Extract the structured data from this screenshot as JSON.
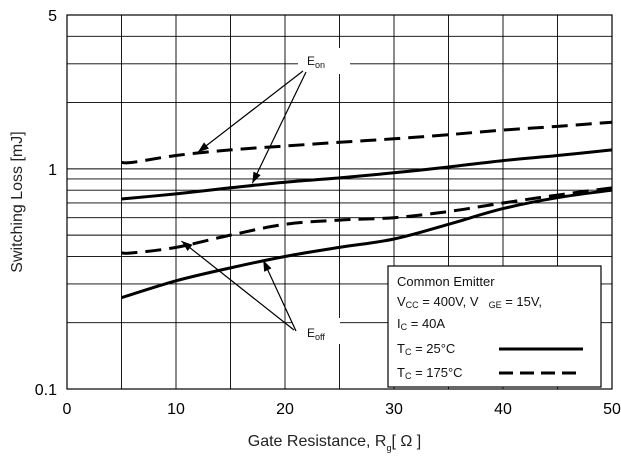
{
  "chart_data": {
    "type": "line",
    "xlabel": "Gate Resistance, R",
    "xlabel_sub": "g",
    "xlabel_unit": "[ Ω ]",
    "ylabel": "Switching Loss [mJ]",
    "xlim": [
      0,
      50
    ],
    "ylim": [
      0.1,
      5
    ],
    "yscale": "log",
    "x_ticks": [
      "0",
      "10",
      "20",
      "30",
      "40",
      "50"
    ],
    "y_ticks": [
      "0.1",
      "1",
      "5"
    ],
    "grid": true,
    "series": [
      {
        "name": "T C = 25°C",
        "curve": "Eon",
        "x": [
          5,
          10,
          15,
          20,
          25,
          30,
          35,
          40,
          45,
          50
        ],
        "y": [
          0.73,
          0.77,
          0.82,
          0.87,
          0.91,
          0.96,
          1.02,
          1.09,
          1.15,
          1.22
        ]
      },
      {
        "name": "T C = 175°C",
        "curve": "Eon",
        "x": [
          5,
          6,
          10,
          15,
          20,
          25,
          30,
          35,
          40,
          45,
          50
        ],
        "y": [
          1.07,
          1.07,
          1.15,
          1.22,
          1.27,
          1.32,
          1.37,
          1.43,
          1.5,
          1.56,
          1.63
        ]
      },
      {
        "name": "T C = 25°C",
        "curve": "Eoff",
        "x": [
          5,
          10,
          15,
          20,
          25,
          30,
          35,
          40,
          45,
          50
        ],
        "y": [
          0.26,
          0.31,
          0.355,
          0.4,
          0.44,
          0.48,
          0.56,
          0.66,
          0.74,
          0.8
        ]
      },
      {
        "name": "T C = 175°C",
        "curve": "Eoff",
        "x": [
          5,
          6,
          10,
          15,
          20,
          25,
          30,
          35,
          40,
          45,
          50
        ],
        "y": [
          0.415,
          0.415,
          0.44,
          0.5,
          0.56,
          0.585,
          0.6,
          0.64,
          0.7,
          0.76,
          0.82
        ]
      }
    ],
    "annotations": [
      {
        "text": "E",
        "sub": "on",
        "curve": "Eon"
      },
      {
        "text": "E",
        "sub": "off",
        "curve": "Eoff"
      }
    ],
    "legend": {
      "placement": "bottom-right",
      "lines": [
        "Common Emitter",
        "V CC = 400V, V GE = 15V,",
        "I C = 40A"
      ],
      "parts": {
        "vcc_v": "V",
        "vcc_sub": "CC",
        "vcc_rest": " = 400V, V",
        "vge_sub": "GE",
        "vge_rest": " = 15V,",
        "ic_i": "I",
        "ic_sub": "C",
        "ic_rest": " = 40A",
        "t25_t": "T",
        "t25_sub": "C",
        "t25_rest": " = 25°C",
        "t175_t": "T",
        "t175_sub": "C",
        "t175_rest": " = 175°C",
        "title": "Common Emitter"
      }
    },
    "colors": {
      "line": "#000000",
      "grid": "#000000"
    }
  }
}
